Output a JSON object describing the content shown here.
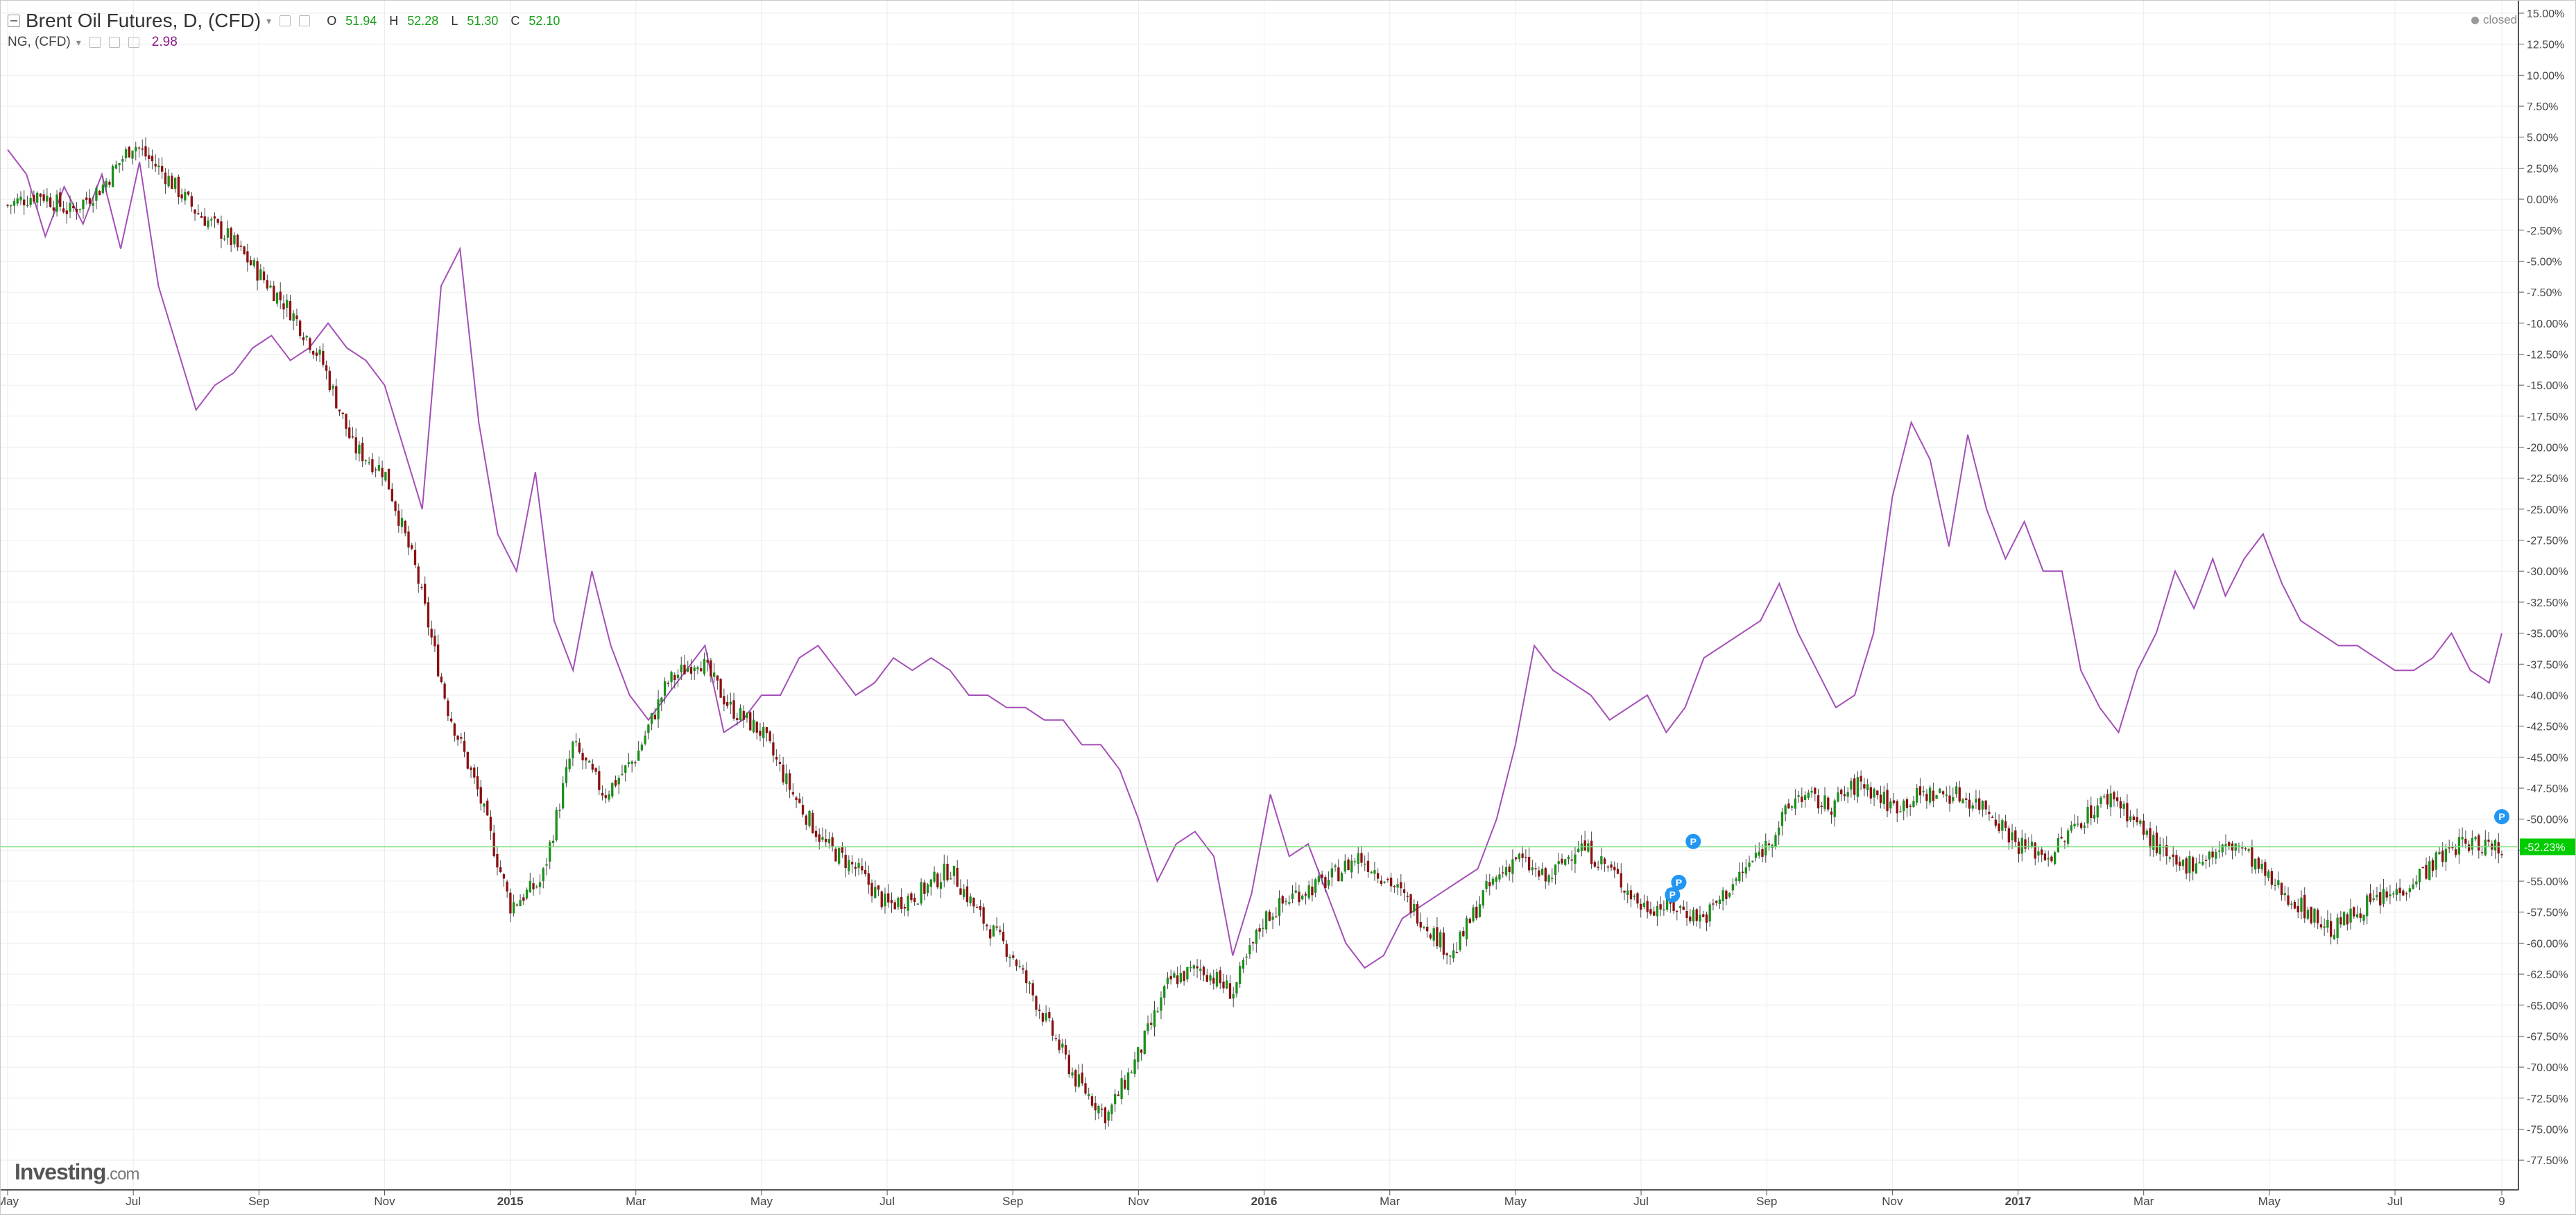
{
  "header": {
    "title": "Brent Oil Futures, D, (CFD)",
    "ohlc": {
      "o_label": "O",
      "o": "51.94",
      "h_label": "H",
      "h": "52.28",
      "l_label": "L",
      "l": "51.30",
      "c_label": "C",
      "c": "52.10"
    },
    "secondary_title": "NG, (CFD)",
    "secondary_value": "2.98",
    "status": "closed"
  },
  "branding": {
    "logo_main": "Investing",
    "logo_suffix": ".com"
  },
  "colors": {
    "up": "#1d8f1d",
    "down": "#8b1111",
    "ng_line": "#a44fb8",
    "last_price": "#00cc00",
    "marker": "#2196f3"
  },
  "chart_data": {
    "type": "line",
    "y_axis": {
      "unit": "%",
      "range": [
        -80,
        15
      ],
      "tick_labels": [
        "15.00%",
        "12.50%",
        "10.00%",
        "7.50%",
        "5.00%",
        "2.50%",
        "0.00%",
        "-2.50%",
        "-5.00%",
        "-7.50%",
        "-10.00%",
        "-12.50%",
        "-15.00%",
        "-17.50%",
        "-20.00%",
        "-22.50%",
        "-25.00%",
        "-27.50%",
        "-30.00%",
        "-32.50%",
        "-35.00%",
        "-37.50%",
        "-40.00%",
        "-42.50%",
        "-45.00%",
        "-47.50%",
        "-50.00%",
        "-52.50%",
        "-55.00%",
        "-57.50%",
        "-60.00%",
        "-62.50%",
        "-65.00%",
        "-67.50%",
        "-70.00%",
        "-72.50%",
        "-75.00%",
        "-77.50%"
      ],
      "last_value_label": "-52.23%",
      "last_value": -52.23
    },
    "x_axis": {
      "tick_labels": [
        "May",
        "Jul",
        "Sep",
        "Nov",
        "2015",
        "Mar",
        "May",
        "Jul",
        "Sep",
        "Nov",
        "2016",
        "Mar",
        "May",
        "Jul",
        "Sep",
        "Nov",
        "2017",
        "Mar",
        "May",
        "Jul",
        "9"
      ],
      "tick_positions": [
        0,
        2,
        4,
        6,
        8,
        10,
        12,
        14,
        16,
        18,
        20,
        22,
        24,
        26,
        28,
        30,
        32,
        34,
        36,
        38,
        39.7
      ],
      "bold_labels": [
        "2015",
        "2016",
        "2017"
      ]
    },
    "grid": true,
    "series": [
      {
        "name": "Brent Oil Futures, D, (CFD)",
        "style": "candlestick",
        "x": [
          0,
          0.5,
          1,
          1.5,
          2,
          2.5,
          3,
          3.5,
          4,
          4.5,
          5,
          5.5,
          6,
          6.5,
          7,
          7.5,
          8,
          8.5,
          9,
          9.5,
          10,
          10.5,
          11,
          11.5,
          12,
          12.5,
          13,
          13.5,
          14,
          14.5,
          15,
          15.5,
          16,
          16.5,
          17,
          17.5,
          18,
          18.5,
          19,
          19.5,
          20,
          20.5,
          21,
          21.5,
          22,
          22.5,
          23,
          23.5,
          24,
          24.5,
          25,
          25.5,
          26,
          26.5,
          27,
          27.5,
          28,
          28.5,
          29,
          29.5,
          30,
          30.5,
          31,
          31.5,
          32,
          32.5,
          33,
          33.5,
          34,
          34.5,
          35,
          35.5,
          36,
          36.5,
          37,
          37.5,
          38,
          38.5,
          39,
          39.5,
          39.7
        ],
        "values": [
          -0.5,
          0.5,
          -1,
          1,
          4.5,
          2,
          -1,
          -3,
          -6,
          -9,
          -13,
          -20,
          -22,
          -30,
          -41,
          -48,
          -57,
          -55,
          -44,
          -48,
          -45,
          -39,
          -37,
          -41,
          -43,
          -48,
          -52,
          -54,
          -57,
          -56,
          -54,
          -58,
          -61,
          -66,
          -71,
          -74,
          -69,
          -63,
          -62,
          -64,
          -58,
          -56,
          -55,
          -53,
          -55,
          -58,
          -61,
          -56,
          -53,
          -55,
          -52,
          -54,
          -57,
          -57,
          -58,
          -55,
          -52,
          -48,
          -49,
          -47,
          -49,
          -48,
          -48,
          -49,
          -52,
          -53,
          -50,
          -48,
          -51,
          -54,
          -53,
          -52,
          -55,
          -57,
          -59,
          -57,
          -56,
          -54,
          -52,
          -52,
          -52.23
        ]
      },
      {
        "name": "NG, (CFD)",
        "style": "line",
        "x": [
          0,
          0.3,
          0.6,
          0.9,
          1.2,
          1.5,
          1.8,
          2.1,
          2.4,
          2.7,
          3,
          3.3,
          3.6,
          3.9,
          4.2,
          4.5,
          4.8,
          5.1,
          5.4,
          5.7,
          6,
          6.3,
          6.6,
          6.9,
          7.2,
          7.5,
          7.8,
          8.1,
          8.4,
          8.7,
          9,
          9.3,
          9.6,
          9.9,
          10.2,
          10.5,
          10.8,
          11.1,
          11.4,
          11.7,
          12,
          12.3,
          12.6,
          12.9,
          13.2,
          13.5,
          13.8,
          14.1,
          14.4,
          14.7,
          15,
          15.3,
          15.6,
          15.9,
          16.2,
          16.5,
          16.8,
          17.1,
          17.4,
          17.7,
          18,
          18.3,
          18.6,
          18.9,
          19.2,
          19.5,
          19.8,
          20.1,
          20.4,
          20.7,
          21,
          21.3,
          21.6,
          21.9,
          22.2,
          22.5,
          22.8,
          23.1,
          23.4,
          23.7,
          24,
          24.3,
          24.6,
          24.9,
          25.2,
          25.5,
          25.8,
          26.1,
          26.4,
          26.7,
          27,
          27.3,
          27.6,
          27.9,
          28.2,
          28.5,
          28.8,
          29.1,
          29.4,
          29.7,
          30,
          30.3,
          30.6,
          30.9,
          31.2,
          31.5,
          31.8,
          32.1,
          32.4,
          32.7,
          33,
          33.3,
          33.6,
          33.9,
          34.2,
          34.5,
          34.8,
          35.1,
          35.3,
          35.6,
          35.9,
          36.2,
          36.5,
          36.8,
          37.1,
          37.4,
          37.7,
          38,
          38.3,
          38.6,
          38.9,
          39.2,
          39.5,
          39.7
        ],
        "values": [
          4,
          2,
          -3,
          1,
          -2,
          2,
          -4,
          3,
          -7,
          -12,
          -17,
          -15,
          -14,
          -12,
          -11,
          -13,
          -12,
          -10,
          -12,
          -13,
          -15,
          -20,
          -25,
          -7,
          -4,
          -18,
          -27,
          -30,
          -22,
          -34,
          -38,
          -30,
          -36,
          -40,
          -42,
          -40,
          -38,
          -36,
          -43,
          -42,
          -40,
          -40,
          -37,
          -36,
          -38,
          -40,
          -39,
          -37,
          -38,
          -37,
          -38,
          -40,
          -40,
          -41,
          -41,
          -42,
          -42,
          -44,
          -44,
          -46,
          -50,
          -55,
          -52,
          -51,
          -53,
          -61,
          -56,
          -48,
          -53,
          -52,
          -56,
          -60,
          -62,
          -61,
          -58,
          -57,
          -56,
          -55,
          -54,
          -50,
          -44,
          -36,
          -38,
          -39,
          -40,
          -42,
          -41,
          -40,
          -43,
          -41,
          -37,
          -36,
          -35,
          -34,
          -31,
          -35,
          -38,
          -41,
          -40,
          -35,
          -24,
          -18,
          -21,
          -28,
          -19,
          -25,
          -29,
          -26,
          -30,
          -30,
          -38,
          -41,
          -43,
          -38,
          -35,
          -30,
          -33,
          -29,
          -32,
          -29,
          -27,
          -31,
          -34,
          -35,
          -36,
          -36,
          -37,
          -38,
          -38,
          -37,
          -35,
          -38,
          -39,
          -35
        ]
      }
    ],
    "markers": [
      {
        "label": "P",
        "x": 26.83,
        "y": -51.8
      },
      {
        "label": "P",
        "x": 26.6,
        "y": -55.1
      },
      {
        "label": "P",
        "x": 26.5,
        "y": -56.1
      },
      {
        "label": "P",
        "x": 39.7,
        "y": -49.8
      }
    ]
  }
}
